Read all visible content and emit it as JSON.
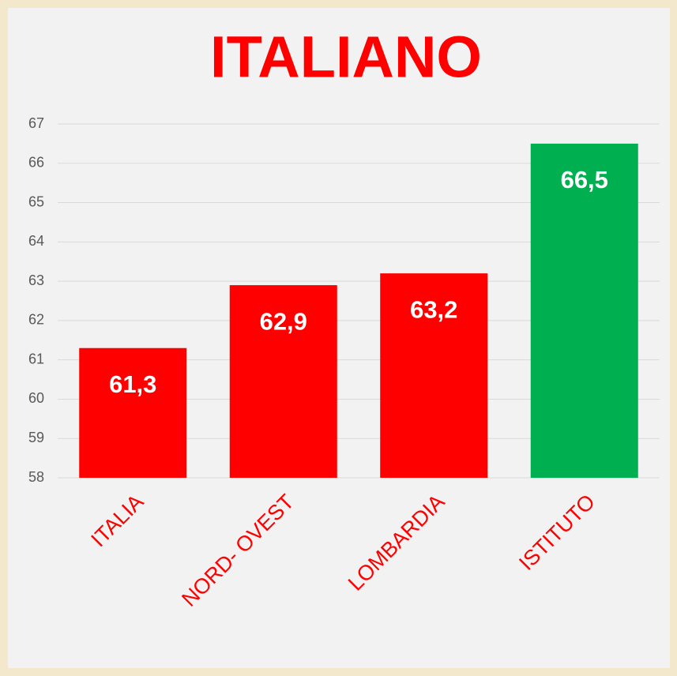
{
  "chart_data": {
    "type": "bar",
    "title": "ITALIANO",
    "categories": [
      "ITALIA",
      "NORD- OVEST",
      "LOMBARDIA",
      "ISTITUTO"
    ],
    "values": [
      61.3,
      62.9,
      63.2,
      66.5
    ],
    "value_labels": [
      "61,3",
      "62,9",
      "63,2",
      "66,5"
    ],
    "colors": [
      "#ff0000",
      "#ff0000",
      "#ff0000",
      "#00b050"
    ],
    "ylim": [
      58,
      67
    ],
    "yticks": [
      58,
      59,
      60,
      61,
      62,
      63,
      64,
      65,
      66,
      67
    ],
    "grid": true
  }
}
